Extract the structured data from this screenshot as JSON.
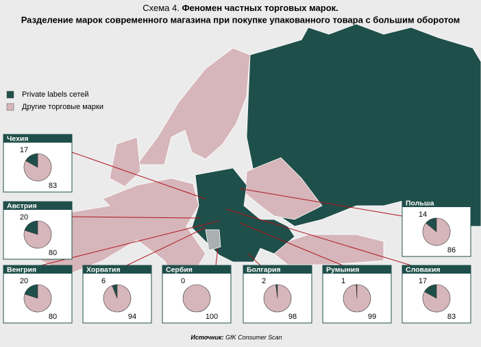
{
  "header": {
    "prefix": "Схема 4.",
    "title": "Феномен частных торговых марок.",
    "subtitle": "Разделение марок современного магазина при покупке упакованного товара с большим оборотом"
  },
  "legend": [
    {
      "name": "Private labels сетей",
      "color": "#1f4f4a"
    },
    {
      "name": "Другие торговые марки",
      "color": "#d6b6ba"
    }
  ],
  "pies": [
    {
      "country": "Чехия",
      "values": [
        17,
        83
      ]
    },
    {
      "country": "Австрия",
      "values": [
        20,
        80
      ]
    },
    {
      "country": "Венгрия",
      "values": [
        20,
        80
      ]
    },
    {
      "country": "Хорватия",
      "values": [
        6,
        94
      ]
    },
    {
      "country": "Сербия",
      "values": [
        0,
        100
      ]
    },
    {
      "country": "Болгария",
      "values": [
        2,
        98
      ]
    },
    {
      "country": "Румыния",
      "values": [
        1,
        99
      ]
    },
    {
      "country": "Словакия",
      "values": [
        17,
        83
      ]
    },
    {
      "country": "Польша",
      "values": [
        14,
        86
      ]
    }
  ],
  "source": {
    "label": "Источник:",
    "text": "GfK Consumer Scan"
  }
}
